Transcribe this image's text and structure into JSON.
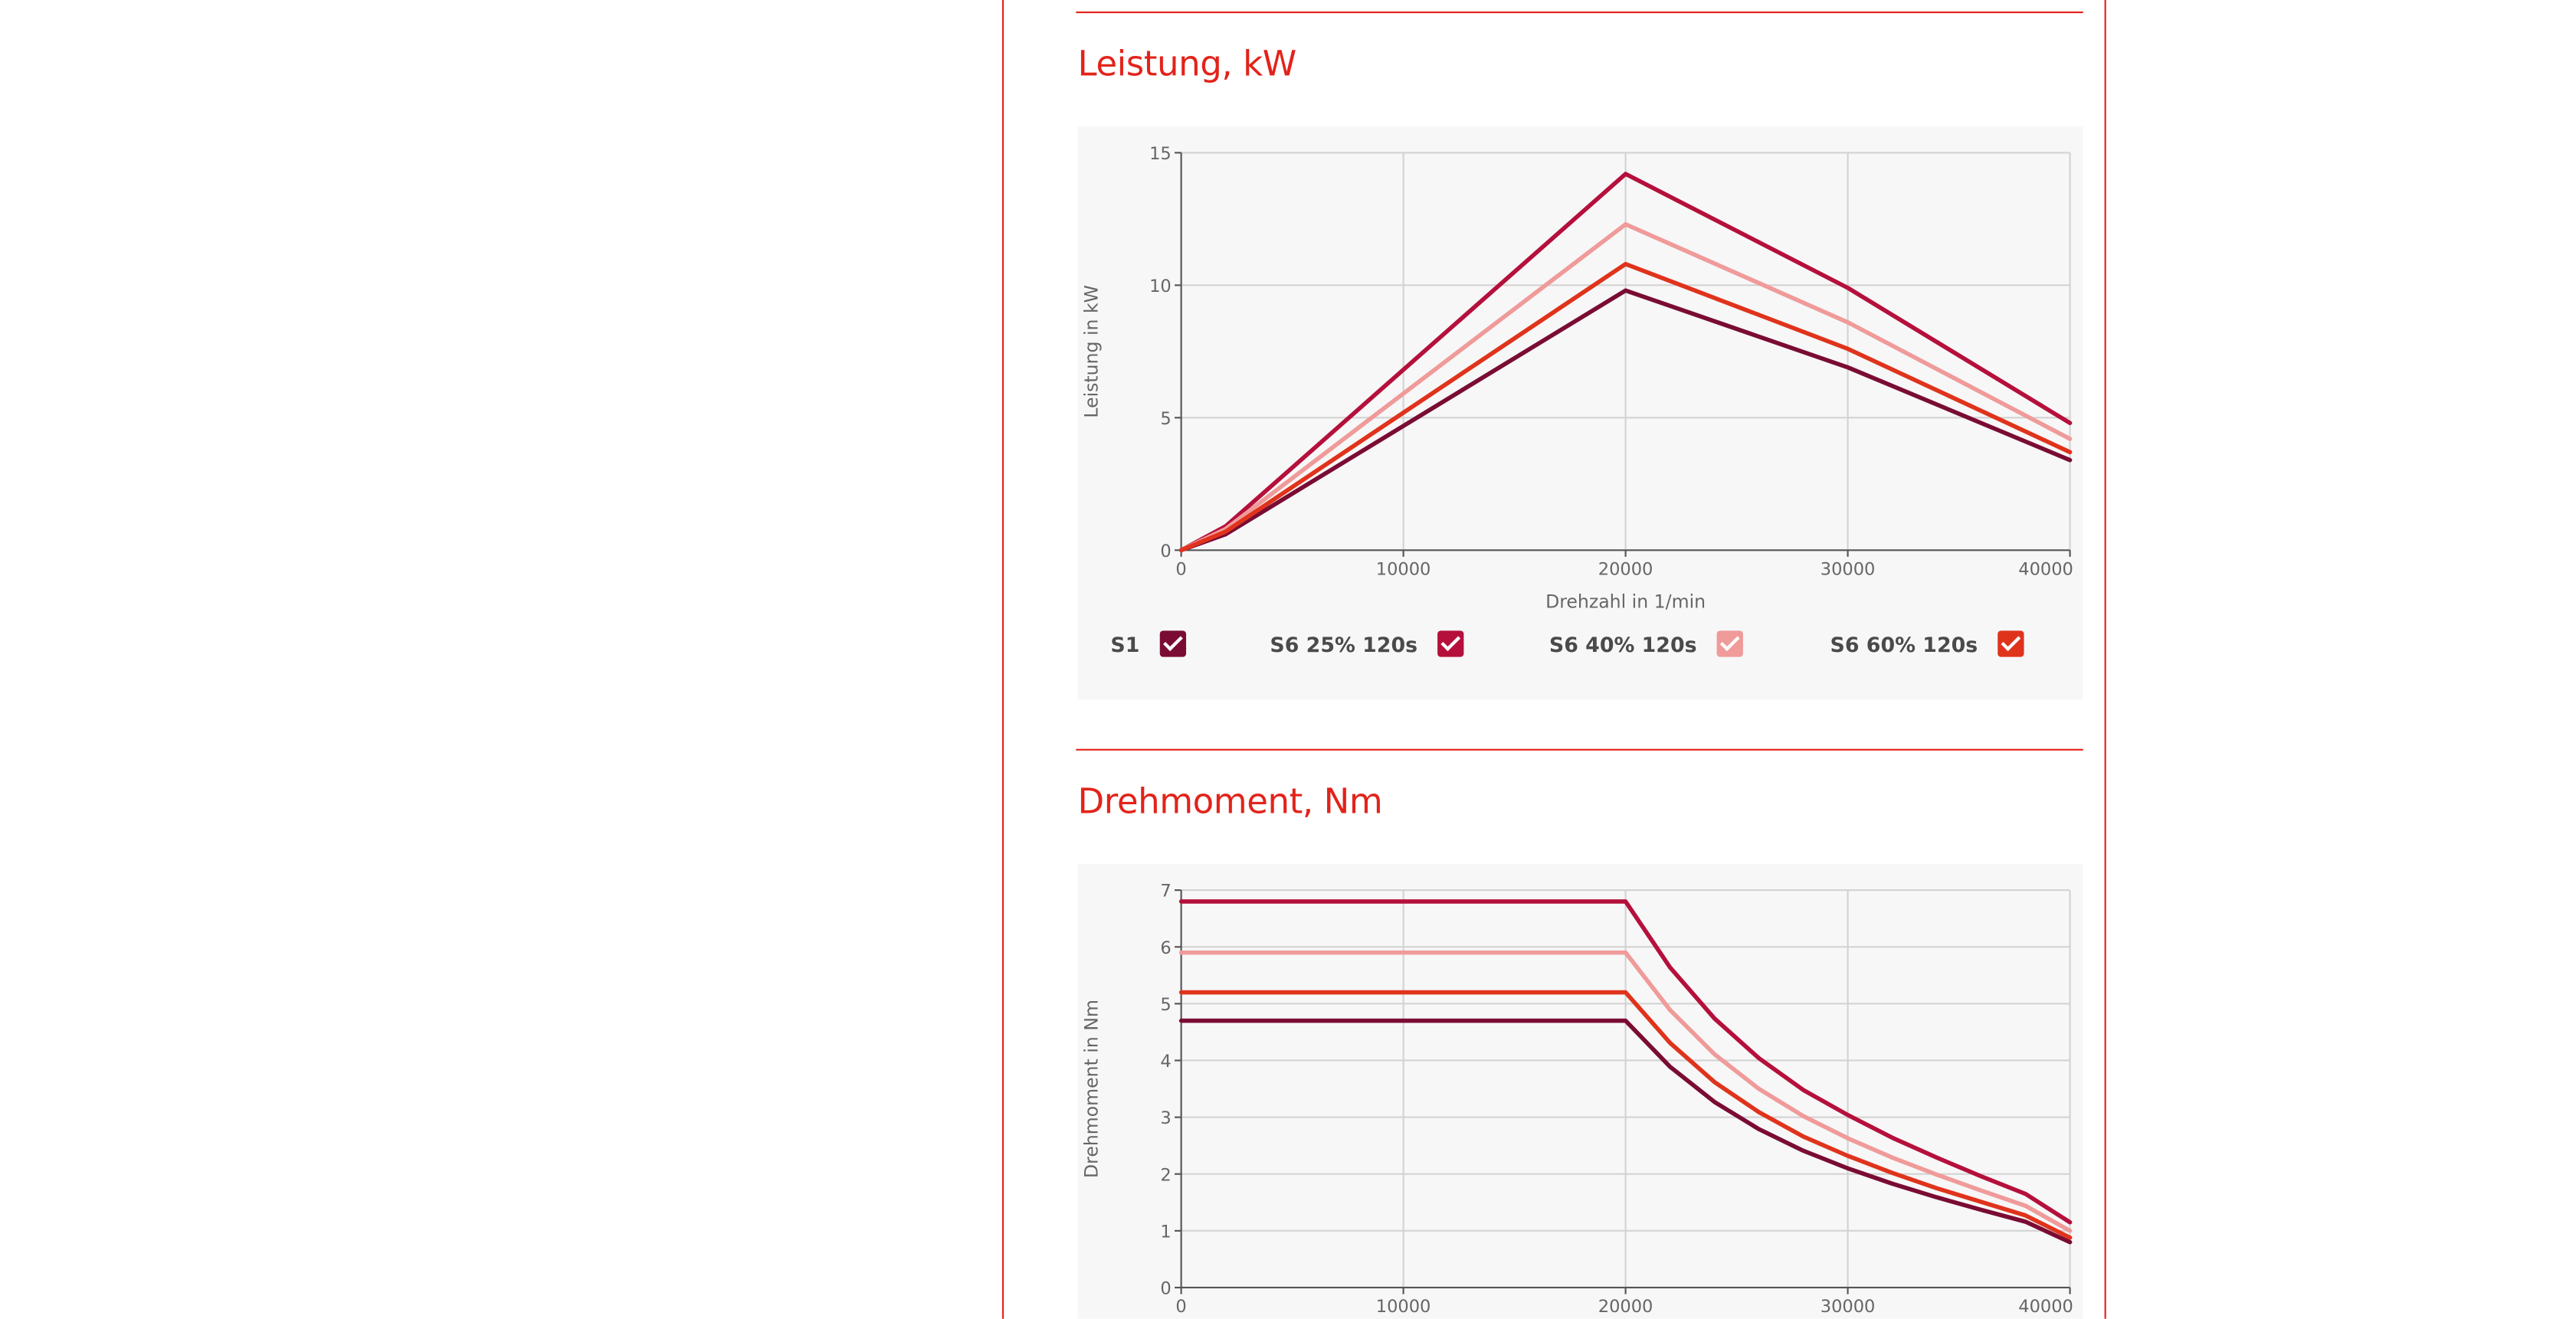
{
  "sections": [
    {
      "title": "Leistung, kW"
    },
    {
      "title": "Drehmoment, Nm"
    }
  ],
  "colors": {
    "accent": "#e2231a",
    "S1": "#7a0c34",
    "S6_25": "#b5103c",
    "S6_40": "#f09a9a",
    "S6_60": "#e0331c"
  },
  "legend": [
    {
      "label": "S1",
      "checked": true,
      "color": "#7a0c34"
    },
    {
      "label": "S6 25% 120s",
      "checked": true,
      "color": "#b5103c"
    },
    {
      "label": "S6 40% 120s",
      "checked": true,
      "color": "#f09a9a"
    },
    {
      "label": "S6 60% 120s",
      "checked": true,
      "color": "#e0331c"
    }
  ],
  "chart_data": [
    {
      "type": "line",
      "title": "Leistung, kW",
      "xlabel": "Drehzahl in 1/min",
      "ylabel": "Leistung in kW",
      "xlim": [
        0,
        40000
      ],
      "ylim": [
        0,
        15
      ],
      "xticks": [
        0,
        10000,
        20000,
        30000,
        40000
      ],
      "yticks": [
        0,
        5,
        10,
        15
      ],
      "grid": true,
      "legend_position": "bottom",
      "x": [
        0,
        2000,
        20000,
        30000,
        40000
      ],
      "series": [
        {
          "name": "S1",
          "color": "#7a0c34",
          "values": [
            0,
            0.6,
            9.8,
            6.9,
            3.4
          ]
        },
        {
          "name": "S6 25% 120s",
          "color": "#b5103c",
          "values": [
            0,
            0.9,
            14.2,
            9.9,
            4.8
          ]
        },
        {
          "name": "S6 40% 120s",
          "color": "#f09a9a",
          "values": [
            0,
            0.8,
            12.3,
            8.6,
            4.2
          ]
        },
        {
          "name": "S6 60% 120s",
          "color": "#e0331c",
          "values": [
            0,
            0.7,
            10.8,
            7.6,
            3.7
          ]
        }
      ]
    },
    {
      "type": "line",
      "title": "Drehmoment, Nm",
      "xlabel": "",
      "ylabel": "Drehmoment in Nm",
      "xlim": [
        0,
        40000
      ],
      "ylim": [
        0,
        7
      ],
      "xticks": [
        0,
        10000,
        20000,
        30000,
        40000
      ],
      "yticks": [
        0,
        1,
        2,
        3,
        4,
        5,
        6,
        7
      ],
      "grid": true,
      "x": [
        0,
        20000,
        22000,
        24000,
        26000,
        28000,
        30000,
        32000,
        34000,
        36000,
        38000,
        40000
      ],
      "series": [
        {
          "name": "S1",
          "color": "#7a0c34",
          "values": [
            4.7,
            4.7,
            3.89,
            3.27,
            2.79,
            2.41,
            2.1,
            1.83,
            1.59,
            1.37,
            1.16,
            0.8
          ]
        },
        {
          "name": "S6 25% 120s",
          "color": "#b5103c",
          "values": [
            6.8,
            6.8,
            5.64,
            4.74,
            4.04,
            3.48,
            3.04,
            2.64,
            2.29,
            1.96,
            1.65,
            1.15
          ]
        },
        {
          "name": "S6 40% 120s",
          "color": "#f09a9a",
          "values": [
            5.9,
            5.9,
            4.89,
            4.11,
            3.5,
            3.02,
            2.63,
            2.29,
            1.99,
            1.71,
            1.44,
            1.0
          ]
        },
        {
          "name": "S6 60% 120s",
          "color": "#e0331c",
          "values": [
            5.2,
            5.2,
            4.31,
            3.62,
            3.09,
            2.66,
            2.32,
            2.02,
            1.75,
            1.51,
            1.27,
            0.88
          ]
        }
      ]
    }
  ]
}
